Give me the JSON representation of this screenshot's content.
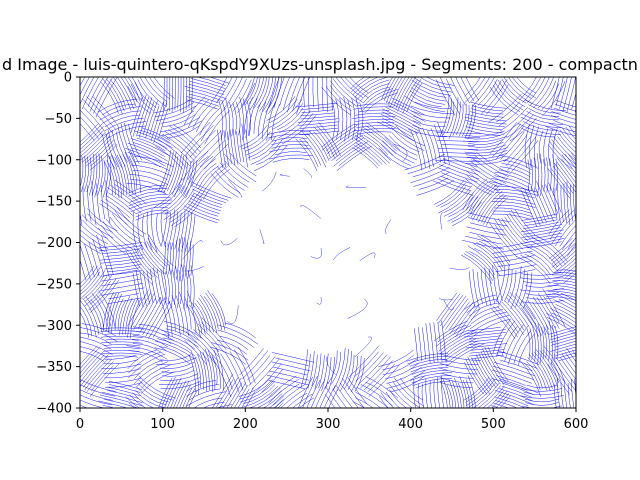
{
  "chart_data": {
    "type": "line",
    "title": "d Image - luis-quintero-qKspdY9XUzs-unsplash.jpg - Segments: 200 - compactn",
    "xlabel": "",
    "ylabel": "",
    "xlim": [
      0,
      600
    ],
    "ylim": [
      -400,
      0
    ],
    "x_ticks": [
      "0",
      "100",
      "200",
      "300",
      "400",
      "500",
      "600"
    ],
    "y_ticks": [
      "0",
      "−50",
      "−100",
      "−150",
      "−200",
      "−250",
      "−300",
      "−350",
      "−400"
    ],
    "x_tick_values": [
      0,
      100,
      200,
      300,
      400,
      500,
      600
    ],
    "y_tick_values": [
      0,
      -50,
      -100,
      -150,
      -200,
      -250,
      -300,
      -350,
      -400
    ],
    "grid": false,
    "legend": "none",
    "series_color": "#0000ff",
    "description_of_marks": "dense blue streamline contours filling segmented regions; white region near center (hands)"
  }
}
